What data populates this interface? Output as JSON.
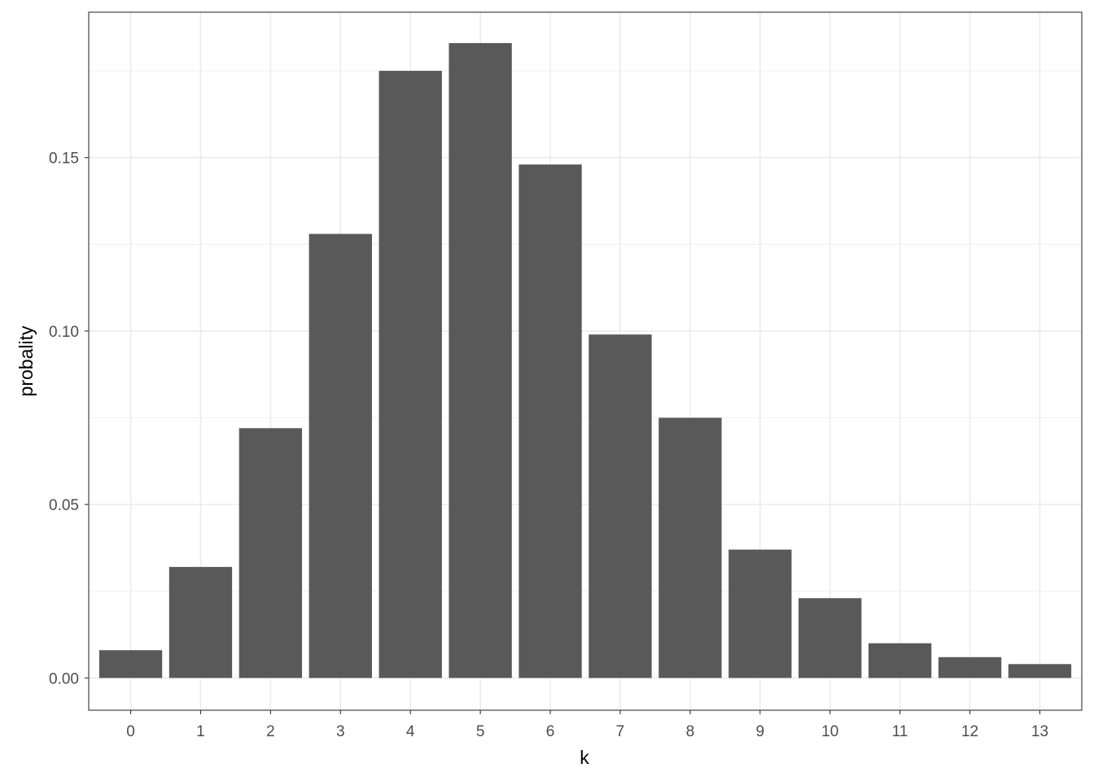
{
  "chart_data": {
    "type": "bar",
    "title": "",
    "xlabel": "k",
    "ylabel": "probality",
    "categories": [
      "0",
      "1",
      "2",
      "3",
      "4",
      "5",
      "6",
      "7",
      "8",
      "9",
      "10",
      "11",
      "12",
      "13"
    ],
    "values": [
      0.008,
      0.032,
      0.072,
      0.128,
      0.175,
      0.183,
      0.148,
      0.099,
      0.075,
      0.037,
      0.023,
      0.01,
      0.006,
      0.004
    ],
    "ylim": [
      -0.0093,
      0.1919
    ],
    "yticks": [
      0.0,
      0.05,
      0.1,
      0.15
    ],
    "ytick_labels": [
      "0.00",
      "0.05",
      "0.10",
      "0.15"
    ],
    "grid": true,
    "legend": "none",
    "colors": {
      "bar": "#595959",
      "grid": "#ebebeb",
      "panel_border": "#333333",
      "tick_text": "#4d4d4d",
      "tick_mark": "#333333"
    }
  }
}
